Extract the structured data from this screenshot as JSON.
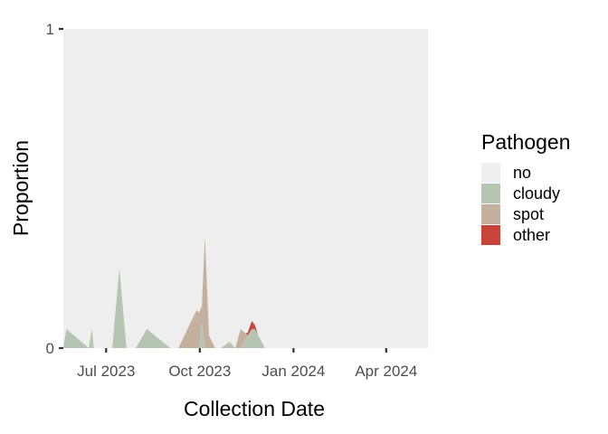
{
  "chart_data": {
    "type": "area",
    "stacked": true,
    "xlabel": "Collection Date",
    "ylabel": "Proportion",
    "ylim": [
      0,
      1
    ],
    "xlim": [
      "2023-05-20",
      "2024-05-12"
    ],
    "y_ticks": [
      {
        "value": 0,
        "label": "0"
      },
      {
        "value": 1,
        "label": "1"
      }
    ],
    "x_ticks": [
      {
        "value": "2023-07-01",
        "label": "Jul 2023"
      },
      {
        "value": "2023-10-01",
        "label": "Oct 2023"
      },
      {
        "value": "2024-01-01",
        "label": "Jan 2024"
      },
      {
        "value": "2024-04-01",
        "label": "Apr 2024"
      }
    ],
    "legend": {
      "title": "Pathogen",
      "position": "right",
      "entries": [
        {
          "name": "no",
          "color": "#eeeeee"
        },
        {
          "name": "cloudy",
          "color": "#b5c5b2"
        },
        {
          "name": "spot",
          "color": "#c4b19d"
        },
        {
          "name": "other",
          "color": "#c8433a"
        }
      ]
    },
    "panel_background": "#eeeeee",
    "grid": false,
    "series": [
      {
        "name": "cloudy",
        "color": "#b5c5b2",
        "points": [
          {
            "x": "2023-05-20",
            "y": 0.0
          },
          {
            "x": "2023-05-23",
            "y": 0.06
          },
          {
            "x": "2023-06-14",
            "y": 0.0
          },
          {
            "x": "2023-06-17",
            "y": 0.06
          },
          {
            "x": "2023-06-19",
            "y": 0.0
          },
          {
            "x": "2023-06-24",
            "y": 0.0
          },
          {
            "x": "2023-07-07",
            "y": 0.0
          },
          {
            "x": "2023-07-14",
            "y": 0.25
          },
          {
            "x": "2023-07-21",
            "y": 0.0
          },
          {
            "x": "2023-07-30",
            "y": 0.0
          },
          {
            "x": "2023-08-10",
            "y": 0.06
          },
          {
            "x": "2023-09-02",
            "y": 0.0
          },
          {
            "x": "2023-09-10",
            "y": 0.0
          },
          {
            "x": "2023-09-28",
            "y": 0.0
          },
          {
            "x": "2023-09-30",
            "y": 0.0
          },
          {
            "x": "2023-10-03",
            "y": 0.08
          },
          {
            "x": "2023-10-06",
            "y": 0.0
          },
          {
            "x": "2023-10-10",
            "y": 0.0
          },
          {
            "x": "2023-10-16",
            "y": 0.0
          },
          {
            "x": "2023-10-22",
            "y": 0.0
          },
          {
            "x": "2023-10-30",
            "y": 0.02
          },
          {
            "x": "2023-11-05",
            "y": 0.0
          },
          {
            "x": "2023-11-10",
            "y": 0.0
          },
          {
            "x": "2023-11-17",
            "y": 0.04
          },
          {
            "x": "2023-11-21",
            "y": 0.06
          },
          {
            "x": "2023-11-24",
            "y": 0.06
          },
          {
            "x": "2023-12-04",
            "y": 0.0
          }
        ]
      },
      {
        "name": "spot",
        "color": "#c4b19d",
        "points": [
          {
            "x": "2023-05-20",
            "y": 0.0
          },
          {
            "x": "2023-09-10",
            "y": 0.0
          },
          {
            "x": "2023-09-28",
            "y": 0.12
          },
          {
            "x": "2023-09-30",
            "y": 0.11
          },
          {
            "x": "2023-10-03",
            "y": 0.05
          },
          {
            "x": "2023-10-06",
            "y": 0.35
          },
          {
            "x": "2023-10-10",
            "y": 0.04
          },
          {
            "x": "2023-10-16",
            "y": 0.0
          },
          {
            "x": "2023-10-22",
            "y": 0.0
          },
          {
            "x": "2023-10-30",
            "y": 0.0
          },
          {
            "x": "2023-11-05",
            "y": 0.0
          },
          {
            "x": "2023-11-10",
            "y": 0.06
          },
          {
            "x": "2023-11-17",
            "y": 0.0
          },
          {
            "x": "2023-11-21",
            "y": 0.0
          },
          {
            "x": "2023-11-24",
            "y": 0.0
          },
          {
            "x": "2023-12-04",
            "y": 0.0
          }
        ]
      },
      {
        "name": "other",
        "color": "#c8433a",
        "points": [
          {
            "x": "2023-11-15",
            "y": 0.0
          },
          {
            "x": "2023-11-21",
            "y": 0.025
          },
          {
            "x": "2023-11-27",
            "y": 0.0
          }
        ]
      }
    ]
  }
}
